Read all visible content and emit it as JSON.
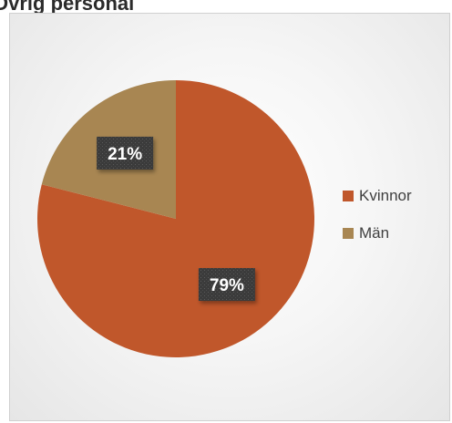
{
  "chart_data": {
    "type": "pie",
    "title": "Övrig personal",
    "slices": [
      {
        "label": "Kvinnor",
        "value": 79,
        "display": "79%",
        "color": "#c0572b"
      },
      {
        "label": "Män",
        "value": 21,
        "display": "21%",
        "color": "#a88652"
      }
    ],
    "start": "12 o'clock",
    "direction": "clockwise",
    "legend_position": "right"
  }
}
